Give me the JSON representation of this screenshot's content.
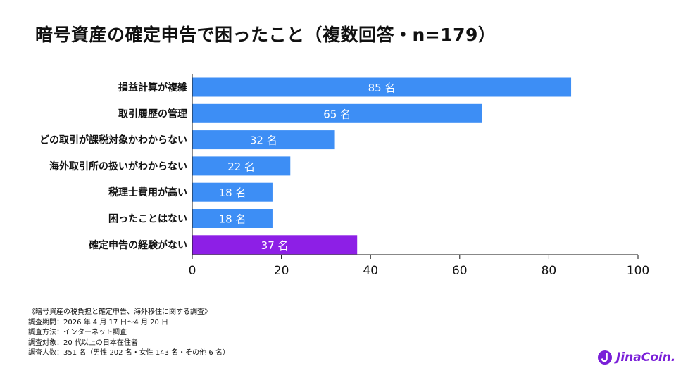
{
  "title": "暗号資産の確定申告で困ったこと（複数回答・n=179）",
  "chart_data": {
    "type": "bar",
    "orientation": "horizontal",
    "categories": [
      "損益計算が複雑",
      "取引履歴の管理",
      "どの取引が課税対象かわからない",
      "海外取引所の扱いがわからない",
      "税理士費用が高い",
      "困ったことはない",
      "確定申告の経験がない"
    ],
    "values": [
      85,
      65,
      32,
      22,
      18,
      18,
      37
    ],
    "data_labels": [
      "85 名",
      "65 名",
      "32 名",
      "22 名",
      "18 名",
      "18 名",
      "37 名"
    ],
    "colors": [
      "#3d8ef5",
      "#3d8ef5",
      "#3d8ef5",
      "#3d8ef5",
      "#3d8ef5",
      "#3d8ef5",
      "#8d1fe6"
    ],
    "xlim": [
      0,
      100
    ],
    "xticks": [
      0,
      20,
      40,
      60,
      80,
      100
    ],
    "grid": false,
    "legend": "none"
  },
  "notes": {
    "source": "《暗号資産の税負担と確定申告、海外移住に関する調査》",
    "period": "調査期間：2026 年 4 月 17 日～4 月 20 日",
    "method": "調査方法：インターネット調査",
    "target": "調査対象：20 代以上の日本在住者",
    "count": "調査人数：351 名（男性 202 名・女性 143 名・その他 6 名）"
  },
  "logo": {
    "text": "JinaCoin.",
    "color": "#7a1fd8"
  }
}
